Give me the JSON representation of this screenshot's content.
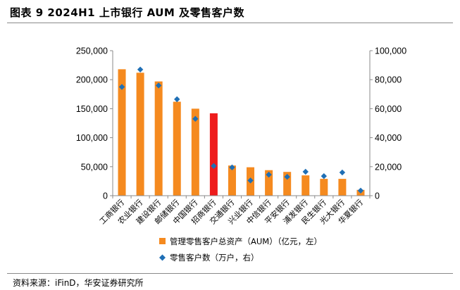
{
  "figure": {
    "title": "图表 9 2024H1 上市银行 AUM 及零售客户数",
    "source": "资料来源：iFinD，华安证券研究所"
  },
  "colors": {
    "bar": "#f58a1f",
    "bar_highlight": "#ee1c1c",
    "marker": "#1f6fb5",
    "axis": "#8a8a8a"
  },
  "chart_data": {
    "type": "bar",
    "categories": [
      "工商银行",
      "农业银行",
      "建设银行",
      "邮储银行",
      "中国银行",
      "招商银行",
      "交通银行",
      "兴业银行",
      "中信银行",
      "平安银行",
      "浦发银行",
      "民生银行",
      "光大银行",
      "华夏银行"
    ],
    "highlight_category": "招商银行",
    "series": [
      {
        "name": "管理零售客户总资产（AUM）（亿元，左）",
        "type": "bar",
        "axis": "left",
        "values": [
          218000,
          212000,
          197000,
          162000,
          150000,
          142000,
          52000,
          49000,
          44000,
          41000,
          35000,
          29000,
          29000,
          10000
        ]
      },
      {
        "name": "零售客户数（万户，右）",
        "type": "scatter",
        "axis": "right",
        "values": [
          75000,
          87000,
          76000,
          66500,
          53000,
          20500,
          19500,
          10500,
          14500,
          13000,
          16500,
          13500,
          16000,
          3500
        ]
      }
    ],
    "y_left": {
      "min": 0,
      "max": 250000,
      "ticks": [
        "0",
        "50,000",
        "100,000",
        "150,000",
        "200,000",
        "250,000"
      ]
    },
    "y_right": {
      "min": 0,
      "max": 100000,
      "ticks": [
        "0",
        "20,000",
        "40,000",
        "60,000",
        "80,000",
        "100,000"
      ]
    },
    "grid": false,
    "legend_position": "bottom"
  }
}
